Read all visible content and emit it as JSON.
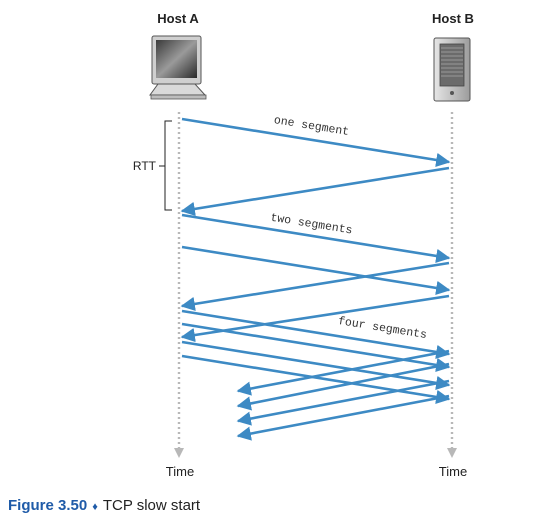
{
  "hosts": {
    "a_label": "Host A",
    "b_label": "Host B"
  },
  "timeline": {
    "a_time_label": "Time",
    "b_time_label": "Time"
  },
  "rtt": {
    "label": "RTT"
  },
  "segments": {
    "one": "one segment",
    "two": "two segments",
    "four": "four segments"
  },
  "caption": {
    "figure": "Figure 3.50",
    "separator": "♦",
    "text": "TCP slow start"
  },
  "colors": {
    "arrow": "#3d8ac4",
    "timeline": "#b8b8b8",
    "caption_accent": "#1f5ba8"
  },
  "icons": {
    "host_a": "desktop-computer-icon",
    "host_b": "server-tower-icon"
  }
}
